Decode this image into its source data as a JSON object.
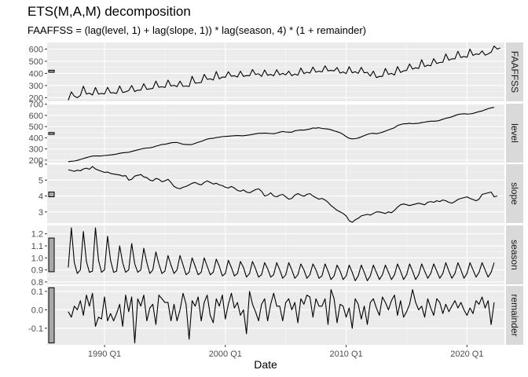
{
  "chart_data": {
    "type": "line",
    "title": "ETS(M,A,M) decomposition",
    "subtitle": "FAAFFSS = (lag(level, 1) + lag(slope, 1)) * lag(season, 4) * (1 + remainder)",
    "xlabel": "Date",
    "ylabel": "",
    "x_ticks": [
      "1990 Q1",
      "2000 Q1",
      "2010 Q1",
      "2020 Q1"
    ],
    "x_start": "1987 Q1",
    "x_end": "2021 Q3",
    "grid": true,
    "panels": [
      {
        "name": "FAAFFSS",
        "ylim": [
          170,
          655
        ],
        "yticks": [
          100,
          200,
          300,
          400,
          500,
          600
        ],
        "yticks_visible": [
          200,
          300,
          400,
          500,
          600
        ],
        "scale_bar": [
          409,
          426
        ],
        "series": [
          {
            "start": "1987 Q1",
            "values": [
              180,
              248,
              212,
              200,
              218,
              295,
              230,
              237,
              222,
              284,
              229,
              235,
              230,
              285,
              240,
              240,
              235,
              296,
              243,
              248,
              258,
              300,
              250,
              262,
              262,
              315,
              268,
              272,
              276,
              336,
              286,
              290,
              283,
              345,
              296,
              302,
              290,
              336,
              293,
              296,
              292,
              376,
              320,
              322,
              325,
              392,
              352,
              355,
              345,
              415,
              355,
              370,
              368,
              414,
              376,
              381,
              370,
              418,
              375,
              382,
              381,
              432,
              391,
              397,
              375,
              428,
              385,
              392,
              380,
              430,
              388,
              400,
              388,
              418,
              381,
              395,
              385,
              444,
              398,
              410,
              402,
              452,
              410,
              418,
              412,
              462,
              421,
              425,
              420,
              448,
              402,
              412,
              398,
              455,
              405,
              414,
              400,
              450,
              405,
              408,
              378,
              418,
              365,
              375,
              375,
              440,
              392,
              400,
              386,
              456,
              408,
              420,
              425,
              478,
              435,
              446,
              440,
              512,
              456,
              468,
              462,
              521,
              481,
              490,
              492,
              560,
              508,
              520,
              520,
              582,
              530,
              540,
              532,
              600,
              548,
              560,
              556,
              585,
              550,
              560,
              575,
              625,
              600,
              610
            ]
          }
        ]
      },
      {
        "name": "level",
        "ylim": [
          178,
          705
        ],
        "yticks": [
          100,
          200,
          300,
          400,
          500,
          600,
          700
        ],
        "yticks_visible": [
          200,
          300,
          400,
          500,
          600,
          700
        ],
        "scale_bar": [
          430,
          447
        ],
        "series": [
          {
            "start": "1987 Q1",
            "values": [
              186,
              190,
              192,
              198,
              206,
              214,
              222,
              230,
              236,
              238,
              237,
              238,
              241,
              243,
              246,
              250,
              254,
              261,
              265,
              268,
              270,
              278,
              285,
              292,
              298,
              305,
              308,
              310,
              315,
              325,
              332,
              340,
              342,
              348,
              355,
              358,
              358,
              350,
              342,
              340,
              338,
              340,
              350,
              360,
              368,
              378,
              388,
              394,
              395,
              402,
              405,
              410,
              412,
              414,
              416,
              418,
              420,
              418,
              418,
              422,
              425,
              430,
              435,
              440,
              440,
              442,
              440,
              438,
              436,
              442,
              450,
              456,
              452,
              450,
              450,
              462,
              466,
              470,
              468,
              474,
              478,
              488,
              486,
              490,
              484,
              481,
              478,
              472,
              462,
              454,
              445,
              430,
              410,
              395,
              390,
              392,
              398,
              408,
              420,
              430,
              438,
              440,
              436,
              442,
              450,
              460,
              470,
              480,
              490,
              510,
              518,
              525,
              525,
              530,
              526,
              528,
              530,
              536,
              540,
              545,
              548,
              548,
              550,
              556,
              566,
              574,
              580,
              588,
              598,
              608,
              612,
              615,
              612,
              614,
              618,
              626,
              634,
              640,
              650,
              660,
              668,
              672
            ]
          }
        ]
      },
      {
        "name": "slope",
        "ylim": [
          2.3,
          6.0
        ],
        "yticks": [
          3,
          4,
          5,
          6
        ],
        "yticks_visible": [
          3,
          4,
          5,
          6
        ],
        "scale_bar": [
          3.95,
          4.25
        ],
        "series": [
          {
            "start": "1987 Q1",
            "values": [
              5.65,
              5.6,
              5.55,
              5.62,
              5.58,
              5.7,
              5.75,
              5.68,
              5.85,
              5.7,
              5.62,
              5.55,
              5.48,
              5.5,
              5.42,
              5.38,
              5.35,
              5.32,
              5.25,
              5.28,
              5.0,
              5.05,
              5.25,
              5.3,
              5.35,
              5.2,
              5.15,
              5.0,
              4.95,
              5.1,
              5.05,
              4.9,
              4.95,
              5.05,
              4.85,
              4.6,
              4.5,
              4.45,
              4.55,
              4.6,
              4.7,
              4.8,
              4.85,
              4.75,
              4.7,
              4.85,
              4.95,
              4.85,
              4.75,
              4.8,
              4.7,
              4.65,
              4.55,
              4.5,
              4.6,
              4.5,
              4.35,
              4.3,
              4.38,
              4.25,
              4.2,
              4.3,
              4.4,
              4.45,
              4.3,
              4.0,
              4.05,
              4.2,
              4.0,
              3.95,
              4.05,
              4.1,
              3.95,
              3.8,
              3.85,
              4.05,
              4.15,
              4.05,
              3.98,
              4.1,
              4.15,
              4.0,
              3.9,
              3.8,
              3.85,
              3.75,
              3.6,
              3.4,
              3.25,
              3.1,
              3.0,
              2.9,
              2.75,
              2.45,
              2.35,
              2.5,
              2.6,
              2.75,
              2.8,
              2.85,
              2.8,
              2.9,
              3.0,
              3.0,
              2.95,
              2.9,
              3.0,
              2.95,
              3.1,
              3.3,
              3.45,
              3.5,
              3.45,
              3.4,
              3.45,
              3.5,
              3.55,
              3.5,
              3.45,
              3.6,
              3.65,
              3.6,
              3.7,
              3.65,
              3.75,
              3.7,
              3.6,
              3.55,
              3.65,
              3.78,
              3.85,
              3.9,
              3.95,
              3.85,
              3.78,
              3.7,
              3.8,
              4.1,
              4.15,
              4.2,
              4.25,
              3.95,
              4.0
            ]
          }
        ]
      },
      {
        "name": "season",
        "ylim": [
          0.78,
          1.27
        ],
        "yticks": [
          0.8,
          0.9,
          1.0,
          1.1,
          1.2
        ],
        "yticks_visible": [
          0.8,
          0.9,
          1.0,
          1.1,
          1.2
        ],
        "scale_bar": [
          0.885,
          1.165
        ],
        "series": [
          {
            "start": "1987 Q1",
            "values": [
              0.92,
              1.25,
              0.96,
              0.87,
              0.9,
              1.22,
              0.97,
              0.88,
              0.89,
              1.25,
              0.98,
              0.88,
              0.9,
              1.18,
              0.98,
              0.88,
              0.89,
              1.1,
              0.96,
              0.88,
              0.9,
              1.12,
              0.95,
              0.88,
              0.9,
              1.08,
              0.96,
              0.87,
              0.9,
              1.05,
              0.95,
              0.87,
              0.89,
              1.02,
              0.94,
              0.87,
              0.9,
              1.02,
              0.94,
              0.86,
              0.88,
              1.0,
              0.93,
              0.86,
              0.88,
              1.0,
              0.93,
              0.86,
              0.88,
              0.99,
              0.93,
              0.85,
              0.87,
              0.98,
              0.92,
              0.85,
              0.87,
              0.97,
              0.92,
              0.84,
              0.87,
              0.97,
              0.91,
              0.84,
              0.86,
              0.96,
              0.91,
              0.84,
              0.86,
              0.96,
              0.9,
              0.83,
              0.86,
              0.96,
              0.9,
              0.83,
              0.86,
              0.95,
              0.9,
              0.83,
              0.86,
              0.95,
              0.9,
              0.83,
              0.85,
              0.95,
              0.89,
              0.82,
              0.85,
              0.94,
              0.89,
              0.82,
              0.85,
              0.94,
              0.88,
              0.81,
              0.85,
              0.94,
              0.88,
              0.81,
              0.85,
              0.94,
              0.88,
              0.82,
              0.86,
              0.94,
              0.88,
              0.82,
              0.86,
              0.95,
              0.89,
              0.82,
              0.86,
              0.95,
              0.89,
              0.82,
              0.86,
              0.95,
              0.89,
              0.83,
              0.87,
              0.95,
              0.89,
              0.83,
              0.87,
              0.96,
              0.89,
              0.83,
              0.87,
              0.96,
              0.9,
              0.83,
              0.87,
              0.96,
              0.9,
              0.84,
              0.88,
              0.96,
              0.9,
              0.84,
              0.88,
              0.96
            ]
          }
        ]
      },
      {
        "name": "remainder",
        "ylim": [
          -0.19,
          0.13
        ],
        "yticks": [
          -0.1,
          0.0,
          0.1
        ],
        "yticks_visible": [
          -0.1,
          0.0,
          0.1
        ],
        "scale_bar": [
          -0.18,
          0.12
        ],
        "series": [
          {
            "start": "1987 Q1",
            "values": [
              -0.01,
              -0.04,
              0.02,
              0.0,
              0.05,
              -0.03,
              0.08,
              0.02,
              0.09,
              -0.09,
              -0.04,
              -0.05,
              0.07,
              -0.06,
              -0.02,
              -0.06,
              -0.02,
              0.03,
              -0.09,
              0.08,
              -0.01,
              0.07,
              -0.18,
              0.06,
              0.02,
              0.08,
              -0.06,
              0.01,
              0.03,
              -0.08,
              0.08,
              0.06,
              0.04,
              0.04,
              -0.06,
              0.03,
              -0.06,
              0.0,
              0.09,
              0.03,
              -0.16,
              0.05,
              0.02,
              0.07,
              -0.06,
              0.04,
              0.08,
              -0.03,
              -0.07,
              0.06,
              0.02,
              0.08,
              -0.05,
              0.03,
              0.09,
              0.01,
              0.04,
              -0.03,
              0.0,
              -0.13,
              0.1,
              0.03,
              -0.01,
              -0.06,
              0.03,
              0.06,
              -0.06,
              0.03,
              0.09,
              0.02,
              0.02,
              -0.06,
              0.04,
              0.06,
              0.0,
              0.04,
              -0.07,
              0.06,
              0.03,
              0.08,
              0.07,
              -0.04,
              0.06,
              0.02,
              0.02,
              0.06,
              -0.08,
              0.11,
              0.06,
              -0.07,
              0.03,
              0.02,
              -0.04,
              0.01,
              -0.1,
              0.06,
              0.03,
              -0.05,
              0.02,
              -0.08,
              0.04,
              0.06,
              0.01,
              -0.03,
              0.07,
              0.04,
              0.0,
              0.05,
              0.08,
              -0.03,
              0.05,
              -0.04,
              -0.01,
              0.03,
              0.11,
              0.04,
              0.0,
              0.02,
              -0.04,
              0.06,
              0.01,
              -0.03,
              0.06,
              0.04,
              -0.02,
              0.03,
              -0.01,
              0.02,
              0.05,
              0.01,
              0.04,
              0.0,
              -0.03,
              0.01,
              -0.02,
              0.05,
              0.03,
              0.07,
              0.01,
              0.05,
              -0.08,
              0.04
            ]
          }
        ]
      }
    ]
  }
}
